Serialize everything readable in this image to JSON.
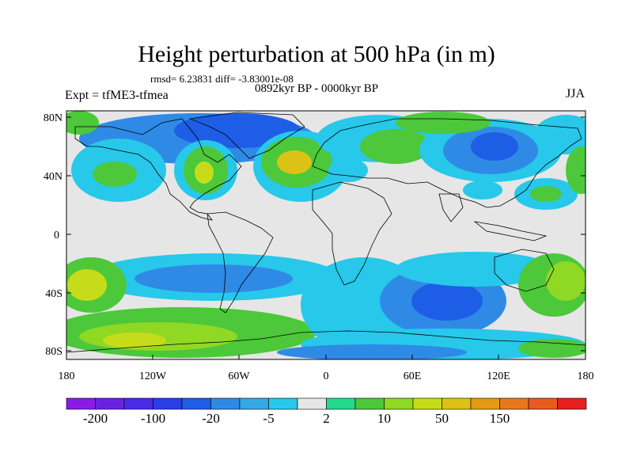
{
  "header": {
    "title": "Height perturbation at 500 hPa (in m)",
    "stats": "rmsd= 6.23831 diff= -3.83001e-08",
    "period": "0892kyr BP - 0000kyr BP",
    "experiment": "Expt = tfME3-tfmea",
    "season": "JJA"
  },
  "axes": {
    "lat_ticks": [
      "80N",
      "40N",
      "0",
      "40S",
      "80S"
    ],
    "lon_ticks": [
      "180",
      "120W",
      "60W",
      "0",
      "60E",
      "120E",
      "180"
    ]
  },
  "colorbar": {
    "colors": [
      "#8a1be6",
      "#6a22e0",
      "#4a2ce6",
      "#2a3ee6",
      "#1e5ee6",
      "#2f8ae6",
      "#32a9e6",
      "#27c8ea",
      "#e6e6e6",
      "#23d98c",
      "#4cc83a",
      "#8fd824",
      "#c6dc1a",
      "#dcc214",
      "#e49a12",
      "#e8781a",
      "#e85a1e",
      "#e81e1e"
    ],
    "labels": [
      "-200",
      "-100",
      "-20",
      "-5",
      "2",
      "10",
      "50",
      "150"
    ]
  },
  "palette": {
    "land_outline": "#000000",
    "frame": "#000000",
    "neutral": "#e6e6e6"
  }
}
